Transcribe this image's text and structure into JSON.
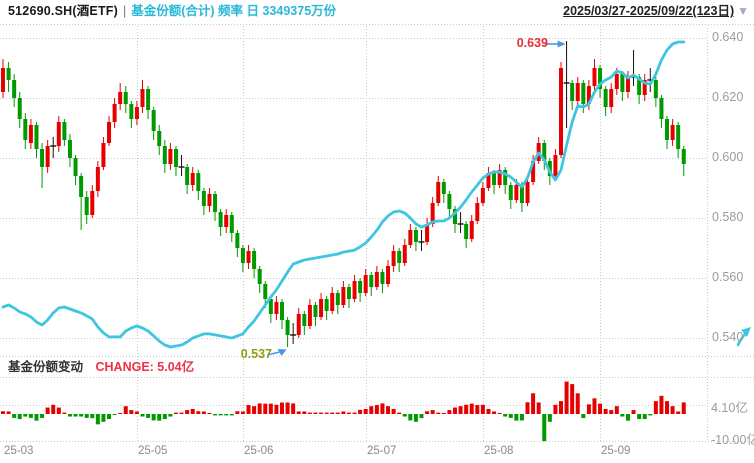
{
  "header": {
    "symbol": "512690.SH(酒ETF)",
    "separator": "|",
    "series_label": "基金份额(合计) 频率 日 3349375万份",
    "date_range": "2025/03/27-2025/09/22(123日)",
    "dropdown_icon": "▼"
  },
  "panel2": {
    "title": "基金份额变动",
    "change_label": "CHANGE: 5.04亿"
  },
  "colors": {
    "up": "#e60000",
    "down": "#009900",
    "flat": "#111111",
    "share_line": "#3ec6e0",
    "header_series_text": "#29b9d8",
    "change_text": "#ee3048",
    "annotation_high": "#e33030",
    "annotation_low": "#8da012",
    "arrow": "#4b96e6",
    "grid": "#c9c9c9",
    "axis_text": "#9b9b9b",
    "expand_icon": "#3ec6e0"
  },
  "chart_data": {
    "type": "candlestick+line+bar",
    "title": "512690.SH(酒ETF) 基金份额(合计) 频率 日",
    "x_ticks": [
      {
        "label": "25-03",
        "day": 0
      },
      {
        "label": "25-05",
        "day": 24
      },
      {
        "label": "25-06",
        "day": 43
      },
      {
        "label": "25-07",
        "day": 65
      },
      {
        "label": "25-08",
        "day": 86
      },
      {
        "label": "25-09",
        "day": 107
      }
    ],
    "price_axis": {
      "ticks": [
        {
          "label": "0.640",
          "value": 0.64
        },
        {
          "label": "0.620",
          "value": 0.62
        },
        {
          "label": "0.600",
          "value": 0.6
        },
        {
          "label": "0.580",
          "value": 0.58
        },
        {
          "label": "0.560",
          "value": 0.56
        },
        {
          "label": "0.540",
          "value": 0.54
        }
      ]
    },
    "annotations": {
      "high": {
        "label": "0.639",
        "value": 0.639,
        "day": 101
      },
      "low": {
        "label": "0.537",
        "value": 0.537,
        "day": 51
      }
    },
    "candles": [
      [
        0.622,
        0.633,
        0.62,
        0.63
      ],
      [
        0.63,
        0.632,
        0.622,
        0.626
      ],
      [
        0.626,
        0.628,
        0.617,
        0.62
      ],
      [
        0.62,
        0.622,
        0.61,
        0.613
      ],
      [
        0.613,
        0.615,
        0.603,
        0.606
      ],
      [
        0.605,
        0.613,
        0.603,
        0.611
      ],
      [
        0.611,
        0.612,
        0.6,
        0.603
      ],
      [
        0.603,
        0.605,
        0.59,
        0.597
      ],
      [
        0.597,
        0.606,
        0.595,
        0.604
      ],
      [
        0.604,
        0.607,
        0.6,
        0.604
      ],
      [
        0.604,
        0.614,
        0.602,
        0.612
      ],
      [
        0.612,
        0.613,
        0.604,
        0.606
      ],
      [
        0.606,
        0.608,
        0.597,
        0.6
      ],
      [
        0.6,
        0.601,
        0.591,
        0.594
      ],
      [
        0.594,
        0.595,
        0.576,
        0.587
      ],
      [
        0.587,
        0.589,
        0.578,
        0.581
      ],
      [
        0.581,
        0.591,
        0.58,
        0.589
      ],
      [
        0.589,
        0.599,
        0.587,
        0.597
      ],
      [
        0.597,
        0.607,
        0.596,
        0.605
      ],
      [
        0.605,
        0.614,
        0.604,
        0.612
      ],
      [
        0.612,
        0.62,
        0.61,
        0.618
      ],
      [
        0.618,
        0.625,
        0.616,
        0.622
      ],
      [
        0.622,
        0.624,
        0.615,
        0.618
      ],
      [
        0.618,
        0.619,
        0.61,
        0.613
      ],
      [
        0.613,
        0.619,
        0.611,
        0.617
      ],
      [
        0.617,
        0.626,
        0.615,
        0.623
      ],
      [
        0.623,
        0.624,
        0.613,
        0.616
      ],
      [
        0.616,
        0.617,
        0.606,
        0.609
      ],
      [
        0.609,
        0.611,
        0.601,
        0.604
      ],
      [
        0.604,
        0.606,
        0.595,
        0.598
      ],
      [
        0.598,
        0.605,
        0.596,
        0.603
      ],
      [
        0.603,
        0.604,
        0.594,
        0.597
      ],
      [
        0.597,
        0.601,
        0.594,
        0.597
      ],
      [
        0.597,
        0.598,
        0.588,
        0.591
      ],
      [
        0.591,
        0.597,
        0.589,
        0.595
      ],
      [
        0.595,
        0.596,
        0.586,
        0.589
      ],
      [
        0.589,
        0.59,
        0.581,
        0.584
      ],
      [
        0.584,
        0.59,
        0.582,
        0.588
      ],
      [
        0.588,
        0.589,
        0.579,
        0.582
      ],
      [
        0.582,
        0.583,
        0.574,
        0.577
      ],
      [
        0.577,
        0.583,
        0.575,
        0.581
      ],
      [
        0.581,
        0.582,
        0.572,
        0.575
      ],
      [
        0.575,
        0.576,
        0.567,
        0.57
      ],
      [
        0.57,
        0.571,
        0.562,
        0.565
      ],
      [
        0.565,
        0.571,
        0.563,
        0.569
      ],
      [
        0.569,
        0.57,
        0.56,
        0.563
      ],
      [
        0.563,
        0.564,
        0.555,
        0.558
      ],
      [
        0.558,
        0.559,
        0.55,
        0.553
      ],
      [
        0.553,
        0.554,
        0.545,
        0.548
      ],
      [
        0.548,
        0.554,
        0.546,
        0.552
      ],
      [
        0.552,
        0.553,
        0.543,
        0.546
      ],
      [
        0.546,
        0.547,
        0.537,
        0.541
      ],
      [
        0.541,
        0.545,
        0.538,
        0.541
      ],
      [
        0.541,
        0.55,
        0.54,
        0.548
      ],
      [
        0.548,
        0.549,
        0.541,
        0.544
      ],
      [
        0.544,
        0.553,
        0.543,
        0.551
      ],
      [
        0.551,
        0.552,
        0.544,
        0.547
      ],
      [
        0.547,
        0.555,
        0.546,
        0.553
      ],
      [
        0.553,
        0.554,
        0.546,
        0.549
      ],
      [
        0.549,
        0.557,
        0.548,
        0.555
      ],
      [
        0.555,
        0.556,
        0.548,
        0.551
      ],
      [
        0.551,
        0.559,
        0.55,
        0.557
      ],
      [
        0.557,
        0.558,
        0.55,
        0.553
      ],
      [
        0.553,
        0.561,
        0.552,
        0.559
      ],
      [
        0.559,
        0.56,
        0.552,
        0.555
      ],
      [
        0.555,
        0.563,
        0.554,
        0.561
      ],
      [
        0.561,
        0.562,
        0.554,
        0.557
      ],
      [
        0.557,
        0.564,
        0.556,
        0.562
      ],
      [
        0.562,
        0.563,
        0.555,
        0.558
      ],
      [
        0.558,
        0.566,
        0.557,
        0.564
      ],
      [
        0.564,
        0.571,
        0.562,
        0.569
      ],
      [
        0.569,
        0.57,
        0.562,
        0.565
      ],
      [
        0.565,
        0.573,
        0.564,
        0.571
      ],
      [
        0.571,
        0.578,
        0.57,
        0.576
      ],
      [
        0.576,
        0.577,
        0.569,
        0.572
      ],
      [
        0.572,
        0.576,
        0.569,
        0.572
      ],
      [
        0.572,
        0.58,
        0.571,
        0.578
      ],
      [
        0.578,
        0.587,
        0.577,
        0.585
      ],
      [
        0.585,
        0.594,
        0.584,
        0.592
      ],
      [
        0.592,
        0.593,
        0.585,
        0.588
      ],
      [
        0.588,
        0.589,
        0.58,
        0.583
      ],
      [
        0.583,
        0.584,
        0.575,
        0.578
      ],
      [
        0.578,
        0.582,
        0.575,
        0.578
      ],
      [
        0.578,
        0.579,
        0.57,
        0.573
      ],
      [
        0.573,
        0.581,
        0.572,
        0.579
      ],
      [
        0.579,
        0.587,
        0.578,
        0.585
      ],
      [
        0.585,
        0.592,
        0.584,
        0.59
      ],
      [
        0.59,
        0.597,
        0.589,
        0.595
      ],
      [
        0.595,
        0.596,
        0.588,
        0.591
      ],
      [
        0.591,
        0.598,
        0.59,
        0.596
      ],
      [
        0.596,
        0.597,
        0.588,
        0.591
      ],
      [
        0.591,
        0.592,
        0.583,
        0.586
      ],
      [
        0.586,
        0.593,
        0.585,
        0.591
      ],
      [
        0.591,
        0.592,
        0.582,
        0.585
      ],
      [
        0.585,
        0.594,
        0.584,
        0.592
      ],
      [
        0.592,
        0.601,
        0.591,
        0.599
      ],
      [
        0.599,
        0.607,
        0.598,
        0.605
      ],
      [
        0.605,
        0.606,
        0.596,
        0.599
      ],
      [
        0.599,
        0.6,
        0.591,
        0.594
      ],
      [
        0.594,
        0.603,
        0.593,
        0.601
      ],
      [
        0.601,
        0.632,
        0.6,
        0.63
      ],
      [
        0.625,
        0.639,
        0.61,
        0.625
      ],
      [
        0.625,
        0.626,
        0.616,
        0.619
      ],
      [
        0.619,
        0.627,
        0.617,
        0.625
      ],
      [
        0.625,
        0.626,
        0.615,
        0.618
      ],
      [
        0.618,
        0.626,
        0.616,
        0.624
      ],
      [
        0.624,
        0.633,
        0.622,
        0.63
      ],
      [
        0.63,
        0.631,
        0.62,
        0.623
      ],
      [
        0.623,
        0.624,
        0.614,
        0.617
      ],
      [
        0.617,
        0.625,
        0.615,
        0.623
      ],
      [
        0.623,
        0.63,
        0.621,
        0.628
      ],
      [
        0.628,
        0.629,
        0.619,
        0.622
      ],
      [
        0.622,
        0.629,
        0.62,
        0.627
      ],
      [
        0.627,
        0.636,
        0.624,
        0.627
      ],
      [
        0.627,
        0.628,
        0.618,
        0.621
      ],
      [
        0.621,
        0.628,
        0.619,
        0.626
      ],
      [
        0.626,
        0.63,
        0.622,
        0.626
      ],
      [
        0.626,
        0.627,
        0.617,
        0.62
      ],
      [
        0.62,
        0.621,
        0.61,
        0.613
      ],
      [
        0.613,
        0.614,
        0.603,
        0.606
      ],
      [
        0.606,
        0.613,
        0.604,
        0.611
      ],
      [
        0.611,
        0.612,
        0.6,
        0.603
      ],
      [
        0.603,
        0.604,
        0.594,
        0.598
      ]
    ],
    "share_line": {
      "name": "基金份额(合计)",
      "unit": "亿份",
      "last_value_label": "3349375万份",
      "values": [
        14.82,
        14.96,
        14.75,
        14.47,
        14.33,
        14.12,
        13.76,
        13.55,
        13.9,
        14.4,
        14.75,
        14.82,
        14.68,
        14.54,
        14.4,
        14.19,
        13.97,
        13.41,
        12.99,
        12.71,
        12.71,
        12.71,
        13.13,
        13.34,
        13.48,
        13.34,
        13.13,
        12.78,
        12.42,
        12.14,
        12.0,
        12.07,
        12.14,
        12.35,
        12.63,
        12.78,
        12.92,
        12.92,
        12.85,
        12.78,
        12.71,
        12.63,
        12.78,
        12.92,
        13.41,
        13.83,
        14.4,
        14.96,
        15.52,
        16.02,
        16.65,
        17.28,
        17.85,
        17.99,
        18.13,
        18.2,
        18.27,
        18.34,
        18.41,
        18.48,
        18.55,
        18.69,
        18.76,
        18.83,
        19.05,
        19.33,
        19.75,
        20.24,
        20.81,
        21.23,
        21.51,
        21.58,
        21.44,
        21.09,
        20.67,
        20.45,
        20.6,
        20.81,
        20.88,
        20.88,
        21.09,
        21.44,
        21.86,
        22.36,
        22.92,
        23.41,
        23.91,
        24.19,
        24.33,
        24.33,
        24.19,
        23.98,
        23.62,
        23.27,
        23.91,
        25.04,
        25.67,
        25.18,
        24.33,
        23.77,
        24.47,
        26.23,
        27.85,
        28.98,
        28.91,
        29.12,
        29.97,
        30.53,
        30.81,
        31.02,
        31.45,
        31.31,
        30.95,
        31.16,
        30.88,
        30.6,
        30.53,
        31.23,
        32.22,
        32.92,
        33.35,
        33.49,
        33.49
      ]
    },
    "bars": {
      "name": "基金份额变动",
      "unit": "亿",
      "change_latest": 5.04,
      "axis": [
        {
          "label": "4.10亿",
          "value": 4.1
        },
        {
          "label": "-10.00亿",
          "value": -10.0
        }
      ],
      "values": [
        1.2,
        1.1,
        -1.7,
        -2.2,
        -1.1,
        -1.7,
        -2.9,
        -1.7,
        2.8,
        4.0,
        2.8,
        0.6,
        -1.1,
        -1.1,
        -1.1,
        -1.7,
        -1.8,
        -4.5,
        -3.4,
        -2.2,
        -0.1,
        0.1,
        3.4,
        1.7,
        1.1,
        -1.1,
        -1.7,
        -2.8,
        -2.9,
        -2.2,
        -1.1,
        0.6,
        0.6,
        1.7,
        2.2,
        1.2,
        1.1,
        0.1,
        -0.6,
        -0.6,
        -0.6,
        -0.6,
        1.2,
        1.1,
        3.9,
        3.4,
        4.6,
        4.5,
        4.5,
        4.0,
        5.0,
        5.0,
        4.6,
        1.1,
        1.1,
        0.6,
        0.6,
        0.6,
        0.6,
        0.6,
        0.6,
        1.1,
        0.6,
        0.6,
        1.8,
        2.2,
        3.4,
        3.9,
        4.6,
        3.4,
        2.2,
        0.6,
        -1.1,
        -2.8,
        -3.4,
        -1.8,
        1.2,
        1.7,
        0.6,
        0.1,
        1.7,
        2.8,
        3.4,
        4.0,
        4.5,
        3.9,
        4.0,
        2.2,
        1.1,
        0.1,
        -1.1,
        -1.7,
        -2.9,
        -2.8,
        5.1,
        9.0,
        5.0,
        -11.8,
        -3.4,
        4.0,
        5.6,
        14.1,
        13.0,
        9.0,
        -1.8,
        4.2,
        6.8,
        4.5,
        2.2,
        1.7,
        3.4,
        -1.1,
        -2.9,
        1.7,
        -2.2,
        -2.2,
        -0.6,
        5.6,
        7.9,
        5.6,
        3.4,
        1.1,
        5.04
      ]
    }
  }
}
